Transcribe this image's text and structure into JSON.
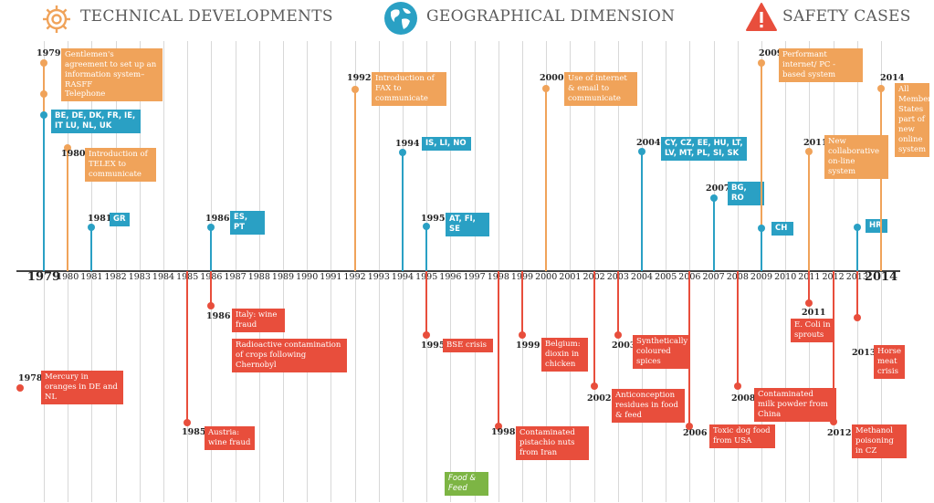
{
  "headers": {
    "technical": "TECHNICAL DEVELOPMENTS",
    "geographical": "GEOGRAPHICAL DIMENSION",
    "safety": "SAFETY CASES"
  },
  "icons": {
    "technical": "gear-icon",
    "geographical": "globe-icon",
    "safety": "warning-icon"
  },
  "colors": {
    "technical": "#f0a35a",
    "geographical": "#2aa0c4",
    "safety": "#e84e3c",
    "food_feed": "#7db544",
    "axis": "#444444",
    "grid": "#d8d8d8"
  },
  "axis": {
    "start_year": 1979,
    "end_year": 2014,
    "years": [
      "1979",
      "1980",
      "1981",
      "1982",
      "1983",
      "1984",
      "1985",
      "1986",
      "1987",
      "1988",
      "1989",
      "1990",
      "1991",
      "1992",
      "1993",
      "1994",
      "1995",
      "1996",
      "1997",
      "1998",
      "1999",
      "2000",
      "2001",
      "2002",
      "2003",
      "2004",
      "2005",
      "2006",
      "2007",
      "2008",
      "2009",
      "2010",
      "2011",
      "2012",
      "2013",
      "2014"
    ],
    "emphasized": [
      "1979",
      "2014"
    ]
  },
  "events": [
    {
      "category": "technical",
      "year": 1979,
      "year_label": "1979",
      "text": "Gentlemen's agreement to set up an information system–RASFF"
    },
    {
      "category": "technical",
      "year": 1979,
      "year_label": "",
      "text": "Telephone"
    },
    {
      "category": "geographical",
      "year": 1979,
      "year_label": "",
      "text": "BE, DE, DK, FR, IE, IT LU, NL, UK"
    },
    {
      "category": "technical",
      "year": 1980,
      "year_label": "1980",
      "text": "Introduction of TELEX to communicate"
    },
    {
      "category": "geographical",
      "year": 1981,
      "year_label": "1981",
      "text": "GR"
    },
    {
      "category": "geographical",
      "year": 1986,
      "year_label": "1986",
      "text": "ES, PT"
    },
    {
      "category": "technical",
      "year": 1992,
      "year_label": "1992",
      "text": "Introduction of FAX to communicate"
    },
    {
      "category": "geographical",
      "year": 1994,
      "year_label": "1994",
      "text": "IS, LI, NO"
    },
    {
      "category": "geographical",
      "year": 1995,
      "year_label": "1995",
      "text": "AT, FI, SE"
    },
    {
      "category": "technical",
      "year": 2000,
      "year_label": "2000",
      "text": "Use of internet & email to communicate"
    },
    {
      "category": "geographical",
      "year": 2004,
      "year_label": "2004",
      "text": "CY, CZ, EE, HU, LT, LV, MT, PL, SI, SK"
    },
    {
      "category": "geographical",
      "year": 2007,
      "year_label": "2007",
      "text": "BG, RO"
    },
    {
      "category": "technical",
      "year": 2009,
      "year_label": "2009",
      "text": "Performant internet/ PC - based system"
    },
    {
      "category": "geographical",
      "year": 2009,
      "year_label": "",
      "text": "CH"
    },
    {
      "category": "technical",
      "year": 2011,
      "year_label": "2011",
      "text": "New collaborative on-line system"
    },
    {
      "category": "geographical",
      "year": 2013,
      "year_label": "",
      "text": "HR"
    },
    {
      "category": "technical",
      "year": 2014,
      "year_label": "2014",
      "text": "All Member States part of new online system"
    },
    {
      "category": "safety",
      "year": 1978,
      "year_label": "1978",
      "text": "Mercury in oranges in DE and NL"
    },
    {
      "category": "safety",
      "year": 1985,
      "year_label": "1985",
      "text": "Austria: wine fraud"
    },
    {
      "category": "safety",
      "year": 1986,
      "year_label": "1986",
      "text": "Italy: wine fraud"
    },
    {
      "category": "safety",
      "year": 1986,
      "year_label": "",
      "text": "Radioactive contamination of crops following Chernobyl"
    },
    {
      "category": "safety",
      "year": 1995,
      "year_label": "1995",
      "text": "BSE crisis"
    },
    {
      "category": "safety",
      "year": 1998,
      "year_label": "1998",
      "text": "Contaminated pistachio nuts from Iran"
    },
    {
      "category": "safety",
      "year": 1999,
      "year_label": "1999",
      "text": "Belgium: dioxin in chicken"
    },
    {
      "category": "safety",
      "year": 2002,
      "year_label": "2002",
      "text": "Anticonception residues in food & feed"
    },
    {
      "category": "safety",
      "year": 2003,
      "year_label": "2003",
      "text": "Synthetically coloured spices"
    },
    {
      "category": "safety",
      "year": 2006,
      "year_label": "2006",
      "text": "Toxic dog food from USA"
    },
    {
      "category": "safety",
      "year": 2008,
      "year_label": "2008",
      "text": "Contaminated milk powder from China"
    },
    {
      "category": "safety",
      "year": 2011,
      "year_label": "2011",
      "text": "E. Coli in sprouts"
    },
    {
      "category": "safety",
      "year": 2012,
      "year_label": "2012",
      "text": "Methanol poisoning in CZ"
    },
    {
      "category": "safety",
      "year": 2013,
      "year_label": "2013",
      "text": "Horse meat crisis"
    },
    {
      "category": "food_feed",
      "year": 1996,
      "year_label": "",
      "text": "Food & Feed"
    }
  ]
}
